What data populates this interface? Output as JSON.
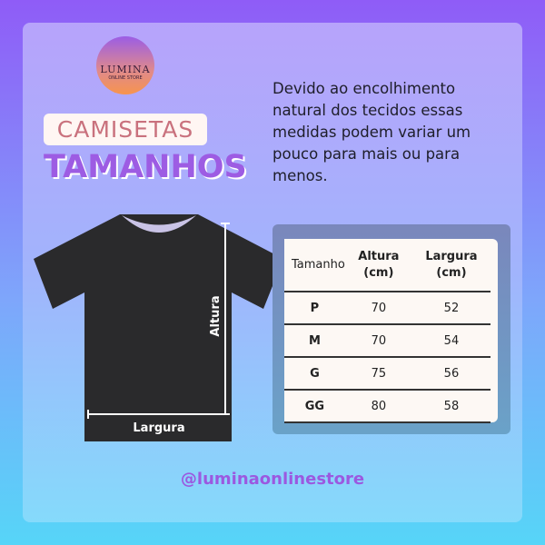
{
  "logo": {
    "line1": "LUMINA",
    "line2": "ONLINE STORE"
  },
  "header": {
    "category": "CAMISETAS",
    "title": "TAMANHOS"
  },
  "note": "Devido ao encolhimento natural dos tecidos essas medidas podem variar um pouco para mais ou para menos.",
  "diagram": {
    "height_label": "Altura",
    "width_label": "Largura"
  },
  "table": {
    "headers": [
      "Tamanho",
      "Altura (cm)",
      "Largura (cm)"
    ],
    "rows": [
      [
        "P",
        "70",
        "52"
      ],
      [
        "M",
        "70",
        "54"
      ],
      [
        "G",
        "75",
        "56"
      ],
      [
        "GG",
        "80",
        "58"
      ]
    ]
  },
  "handle": "@luminaonlinestore"
}
